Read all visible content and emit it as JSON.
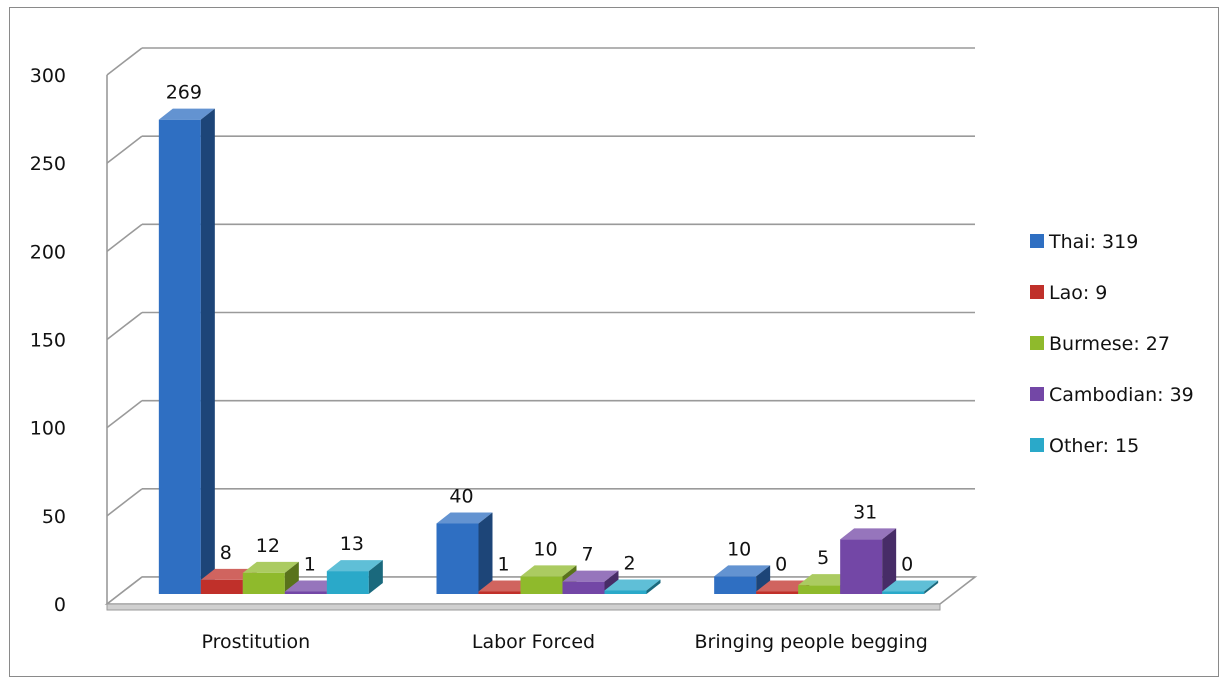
{
  "chart_data": {
    "type": "bar",
    "title": "",
    "xlabel": "",
    "ylabel": "",
    "ylim": [
      0,
      300
    ],
    "yticks": [
      "0",
      "50",
      "100",
      "150",
      "200",
      "250",
      "300"
    ],
    "categories": [
      "Prostitution",
      "Labor Forced",
      "Bringing people begging"
    ],
    "series": [
      {
        "name": "Thai: 319",
        "color": "#2f6fc2",
        "values": [
          269,
          40,
          10
        ],
        "labels": [
          "269",
          "40",
          "10"
        ]
      },
      {
        "name": "Lao: 9",
        "color": "#c0302a",
        "values": [
          8,
          1,
          0
        ],
        "labels": [
          "8",
          "1",
          "0"
        ]
      },
      {
        "name": "Burmese: 27",
        "color": "#8fba2c",
        "values": [
          12,
          10,
          5
        ],
        "labels": [
          "12",
          "10",
          "5"
        ]
      },
      {
        "name": "Cambodian: 39",
        "color": "#7347a6",
        "values": [
          1,
          7,
          31
        ],
        "labels": [
          "1",
          "7",
          "31"
        ]
      },
      {
        "name": "Other: 15",
        "color": "#2aa9c9",
        "values": [
          13,
          2,
          0
        ],
        "labels": [
          "13",
          "2",
          "0"
        ]
      }
    ],
    "grid": true,
    "three_d": true,
    "legend_position": "right"
  }
}
